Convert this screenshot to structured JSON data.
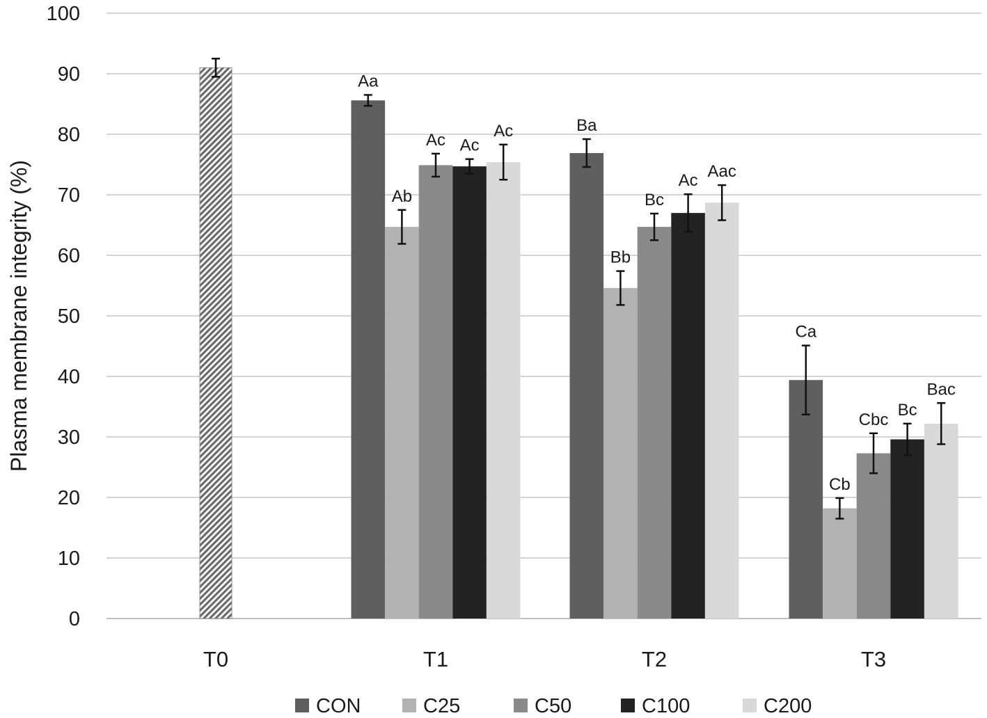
{
  "chart_data": {
    "type": "bar",
    "title": "",
    "xlabel": "",
    "ylabel": "Plasma membrane integrity (%)",
    "ylim": [
      0,
      100
    ],
    "yticks": [
      0,
      10,
      20,
      30,
      40,
      50,
      60,
      70,
      80,
      90,
      100
    ],
    "grid": true,
    "legend_position": "bottom",
    "categories": [
      "T0",
      "T1",
      "T2",
      "T3"
    ],
    "baseline": {
      "category": "T0",
      "value": 91,
      "error": 1.5,
      "pattern": "hatched",
      "color": "#6a6a6a"
    },
    "series": [
      {
        "name": "CON",
        "color": "#5f5f5f",
        "values": [
          null,
          85.6,
          76.9,
          39.4
        ],
        "errors": [
          null,
          0.9,
          2.3,
          5.7
        ],
        "labels": [
          null,
          "Aa",
          "Ba",
          "Ca"
        ]
      },
      {
        "name": "C25",
        "color": "#b2b2b2",
        "values": [
          null,
          64.7,
          54.6,
          18.2
        ],
        "errors": [
          null,
          2.8,
          2.8,
          1.7
        ],
        "labels": [
          null,
          "Ab",
          "Bb",
          "Cb"
        ]
      },
      {
        "name": "C50",
        "color": "#8a8a8a",
        "values": [
          null,
          74.9,
          64.7,
          27.3
        ],
        "errors": [
          null,
          1.9,
          2.2,
          3.3
        ],
        "labels": [
          null,
          "Ac",
          "Bc",
          "Cbc"
        ]
      },
      {
        "name": "C100",
        "color": "#232323",
        "values": [
          null,
          74.7,
          67.0,
          29.6
        ],
        "errors": [
          null,
          1.2,
          3.1,
          2.6
        ],
        "labels": [
          null,
          "Ac",
          "Ac",
          "Bc"
        ]
      },
      {
        "name": "C200",
        "color": "#d9d9d9",
        "values": [
          null,
          75.4,
          68.7,
          32.2
        ],
        "errors": [
          null,
          2.9,
          2.9,
          3.4
        ],
        "labels": [
          null,
          "Ac",
          "Aac",
          "Bac"
        ]
      }
    ]
  }
}
